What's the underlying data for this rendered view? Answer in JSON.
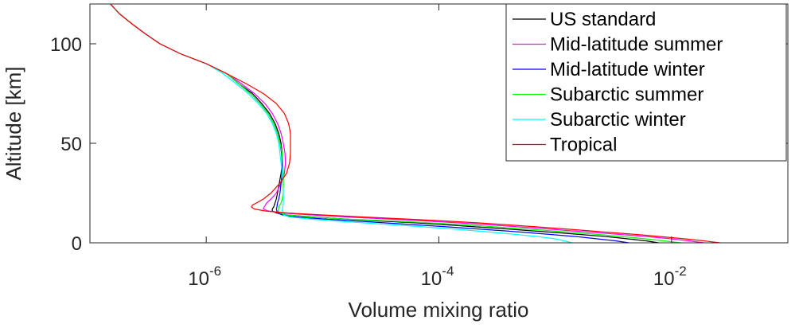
{
  "chart_data": {
    "type": "line",
    "xlabel": "Volume mixing ratio",
    "ylabel": "Altitude [km]",
    "xscale": "log",
    "xlim": [
      1e-07,
      0.1
    ],
    "ylim": [
      0,
      120
    ],
    "xticks": [
      {
        "value": 1e-06,
        "base": "10",
        "exp": "-6"
      },
      {
        "value": 0.0001,
        "base": "10",
        "exp": "-4"
      },
      {
        "value": 0.01,
        "base": "10",
        "exp": "-2"
      }
    ],
    "yticks": [
      0,
      50,
      100
    ],
    "grid": false,
    "legend_position": "top-right",
    "series": [
      {
        "name": "US standard",
        "color": "#000000",
        "points": [
          [
            0.00775,
            0
          ],
          [
            0.006,
            1
          ],
          [
            0.0042,
            2
          ],
          [
            0.0029,
            3
          ],
          [
            0.0018,
            4
          ],
          [
            0.0011,
            5
          ],
          [
            0.00064,
            6
          ],
          [
            0.00038,
            7
          ],
          [
            0.00021,
            8
          ],
          [
            0.00012,
            9
          ],
          [
            6.5e-05,
            10
          ],
          [
            3e-05,
            11
          ],
          [
            1.5e-05,
            12
          ],
          [
            8e-06,
            13
          ],
          [
            5e-06,
            14
          ],
          [
            4e-06,
            15
          ],
          [
            3.7e-06,
            16
          ],
          [
            3.7e-06,
            17
          ],
          [
            3.8e-06,
            18
          ],
          [
            3.9e-06,
            20
          ],
          [
            4e-06,
            22
          ],
          [
            4.1e-06,
            25
          ],
          [
            4.25e-06,
            30
          ],
          [
            4.4e-06,
            35
          ],
          [
            4.5e-06,
            40
          ],
          [
            4.5e-06,
            45
          ],
          [
            4.4e-06,
            50
          ],
          [
            4.2e-06,
            55
          ],
          [
            3.9e-06,
            60
          ],
          [
            3.5e-06,
            65
          ],
          [
            3e-06,
            70
          ],
          [
            2.5e-06,
            75
          ],
          [
            1.9e-06,
            80
          ],
          [
            1.5e-06,
            85
          ],
          [
            1e-06,
            90
          ],
          [
            6e-07,
            95
          ],
          [
            4e-07,
            100
          ],
          [
            3e-07,
            105
          ],
          [
            2.3e-07,
            110
          ],
          [
            1.8e-07,
            115
          ],
          [
            1.5e-07,
            120
          ]
        ]
      },
      {
        "name": "Mid-latitude summer",
        "color": "#ff00ff",
        "points": [
          [
            0.019,
            0
          ],
          [
            0.014,
            1
          ],
          [
            0.01,
            2
          ],
          [
            0.0065,
            3
          ],
          [
            0.004,
            4
          ],
          [
            0.0024,
            5
          ],
          [
            0.0014,
            6
          ],
          [
            0.00085,
            7
          ],
          [
            0.00049,
            8
          ],
          [
            0.00028,
            9
          ],
          [
            0.00015,
            10
          ],
          [
            7.5e-05,
            11
          ],
          [
            3.5e-05,
            12
          ],
          [
            1.6e-05,
            13
          ],
          [
            8e-06,
            14
          ],
          [
            4.5e-06,
            15
          ],
          [
            3.4e-06,
            16
          ],
          [
            3.1e-06,
            17
          ],
          [
            3.15e-06,
            18
          ],
          [
            3.3e-06,
            20
          ],
          [
            3.6e-06,
            22
          ],
          [
            4e-06,
            25
          ],
          [
            4.4e-06,
            30
          ],
          [
            4.7e-06,
            35
          ],
          [
            4.8e-06,
            40
          ],
          [
            4.75e-06,
            45
          ],
          [
            4.6e-06,
            50
          ],
          [
            4.4e-06,
            55
          ],
          [
            4.1e-06,
            60
          ],
          [
            3.7e-06,
            65
          ],
          [
            3.2e-06,
            70
          ],
          [
            2.6e-06,
            75
          ],
          [
            2e-06,
            80
          ],
          [
            1.5e-06,
            85
          ],
          [
            1e-06,
            90
          ],
          [
            6e-07,
            95
          ],
          [
            4e-07,
            100
          ],
          [
            3e-07,
            105
          ],
          [
            2.3e-07,
            110
          ],
          [
            1.8e-07,
            115
          ],
          [
            1.5e-07,
            120
          ]
        ]
      },
      {
        "name": "Mid-latitude winter",
        "color": "#0000ff",
        "points": [
          [
            0.0043,
            0
          ],
          [
            0.0033,
            1
          ],
          [
            0.0023,
            2
          ],
          [
            0.0016,
            3
          ],
          [
            0.001,
            4
          ],
          [
            0.00062,
            5
          ],
          [
            0.00037,
            6
          ],
          [
            0.00021,
            7
          ],
          [
            0.00012,
            8
          ],
          [
            6.5e-05,
            9
          ],
          [
            3.5e-05,
            10
          ],
          [
            1.9e-05,
            11
          ],
          [
            1e-05,
            12
          ],
          [
            6e-06,
            13
          ],
          [
            4.5e-06,
            14
          ],
          [
            4.1e-06,
            15
          ],
          [
            4e-06,
            17
          ],
          [
            4.05e-06,
            18
          ],
          [
            4.1e-06,
            20
          ],
          [
            4.2e-06,
            22
          ],
          [
            4.3e-06,
            25
          ],
          [
            4.4e-06,
            30
          ],
          [
            4.5e-06,
            35
          ],
          [
            4.5e-06,
            40
          ],
          [
            4.45e-06,
            45
          ],
          [
            4.3e-06,
            50
          ],
          [
            4.1e-06,
            55
          ],
          [
            3.8e-06,
            60
          ],
          [
            3.4e-06,
            65
          ],
          [
            2.9e-06,
            70
          ],
          [
            2.4e-06,
            75
          ],
          [
            1.9e-06,
            80
          ],
          [
            1.5e-06,
            85
          ],
          [
            1e-06,
            90
          ],
          [
            6e-07,
            95
          ],
          [
            4e-07,
            100
          ],
          [
            3e-07,
            105
          ],
          [
            2.3e-07,
            110
          ],
          [
            1.8e-07,
            115
          ],
          [
            1.5e-07,
            120
          ]
        ]
      },
      {
        "name": "Subarctic summer",
        "color": "#00ff00",
        "points": [
          [
            0.012,
            0
          ],
          [
            0.0085,
            1
          ],
          [
            0.006,
            2
          ],
          [
            0.004,
            3
          ],
          [
            0.0026,
            4
          ],
          [
            0.0016,
            5
          ],
          [
            0.00095,
            6
          ],
          [
            0.00055,
            7
          ],
          [
            0.00031,
            8
          ],
          [
            0.00017,
            9
          ],
          [
            8.5e-05,
            10
          ],
          [
            3.8e-05,
            11
          ],
          [
            1.5e-05,
            12
          ],
          [
            7.5e-06,
            13
          ],
          [
            5e-06,
            14
          ],
          [
            4.3e-06,
            15
          ],
          [
            4.15e-06,
            16
          ],
          [
            4.2e-06,
            18
          ],
          [
            4.4e-06,
            20
          ],
          [
            4.5e-06,
            22
          ],
          [
            4.6e-06,
            25
          ],
          [
            4.6e-06,
            30
          ],
          [
            4.6e-06,
            35
          ],
          [
            4.55e-06,
            40
          ],
          [
            4.5e-06,
            45
          ],
          [
            4.3e-06,
            50
          ],
          [
            4.1e-06,
            55
          ],
          [
            3.8e-06,
            60
          ],
          [
            3.4e-06,
            65
          ],
          [
            2.9e-06,
            70
          ],
          [
            2.4e-06,
            75
          ],
          [
            1.9e-06,
            80
          ],
          [
            1.5e-06,
            85
          ],
          [
            1e-06,
            90
          ],
          [
            6e-07,
            95
          ],
          [
            4e-07,
            100
          ],
          [
            3e-07,
            105
          ],
          [
            2.3e-07,
            110
          ],
          [
            1.8e-07,
            115
          ],
          [
            1.5e-07,
            120
          ]
        ]
      },
      {
        "name": "Subarctic winter",
        "color": "#00ffff",
        "points": [
          [
            0.0014,
            0
          ],
          [
            0.0012,
            1
          ],
          [
            0.001,
            2
          ],
          [
            0.00075,
            3
          ],
          [
            0.0005,
            4
          ],
          [
            0.00033,
            5
          ],
          [
            0.00021,
            6
          ],
          [
            0.00013,
            7
          ],
          [
            7.5e-05,
            8
          ],
          [
            4.2e-05,
            9
          ],
          [
            2.3e-05,
            10
          ],
          [
            1.3e-05,
            11
          ],
          [
            7.5e-06,
            12
          ],
          [
            5.2e-06,
            13
          ],
          [
            4.6e-06,
            14
          ],
          [
            4.5e-06,
            16
          ],
          [
            4.55e-06,
            18
          ],
          [
            4.6e-06,
            20
          ],
          [
            4.6e-06,
            22
          ],
          [
            4.6e-06,
            25
          ],
          [
            4.55e-06,
            30
          ],
          [
            4.5e-06,
            35
          ],
          [
            4.4e-06,
            40
          ],
          [
            4.3e-06,
            45
          ],
          [
            4.2e-06,
            50
          ],
          [
            4e-06,
            55
          ],
          [
            3.7e-06,
            60
          ],
          [
            3.3e-06,
            65
          ],
          [
            2.8e-06,
            70
          ],
          [
            2.3e-06,
            75
          ],
          [
            1.8e-06,
            80
          ],
          [
            1.4e-06,
            85
          ],
          [
            1e-06,
            90
          ],
          [
            6e-07,
            95
          ],
          [
            4e-07,
            100
          ],
          [
            3e-07,
            105
          ],
          [
            2.3e-07,
            110
          ],
          [
            1.8e-07,
            115
          ],
          [
            1.5e-07,
            120
          ]
        ]
      },
      {
        "name": "Tropical",
        "color": "#ff0000",
        "points": [
          [
            0.026,
            0
          ],
          [
            0.019,
            1
          ],
          [
            0.013,
            2
          ],
          [
            0.0085,
            3
          ],
          [
            0.0055,
            4
          ],
          [
            0.0033,
            5
          ],
          [
            0.002,
            6
          ],
          [
            0.0012,
            7
          ],
          [
            0.0007,
            8
          ],
          [
            0.0004,
            9
          ],
          [
            0.00022,
            10
          ],
          [
            0.00011,
            11
          ],
          [
            5e-05,
            12
          ],
          [
            2.2e-05,
            13
          ],
          [
            1e-05,
            14
          ],
          [
            5e-06,
            15
          ],
          [
            3.2e-06,
            16
          ],
          [
            2.6e-06,
            17
          ],
          [
            2.45e-06,
            18
          ],
          [
            2.5e-06,
            19
          ],
          [
            2.7e-06,
            20
          ],
          [
            3.1e-06,
            22
          ],
          [
            3.6e-06,
            25
          ],
          [
            4.3e-06,
            30
          ],
          [
            4.9e-06,
            35
          ],
          [
            5.2e-06,
            40
          ],
          [
            5.3e-06,
            45
          ],
          [
            5.3e-06,
            50
          ],
          [
            5.3e-06,
            55
          ],
          [
            5.1e-06,
            60
          ],
          [
            4.7e-06,
            65
          ],
          [
            4e-06,
            70
          ],
          [
            3.1e-06,
            75
          ],
          [
            2.2e-06,
            80
          ],
          [
            1.5e-06,
            85
          ],
          [
            1e-06,
            90
          ],
          [
            6e-07,
            95
          ],
          [
            4e-07,
            100
          ],
          [
            3e-07,
            105
          ],
          [
            2.3e-07,
            110
          ],
          [
            1.8e-07,
            115
          ],
          [
            1.5e-07,
            120
          ]
        ]
      }
    ]
  }
}
